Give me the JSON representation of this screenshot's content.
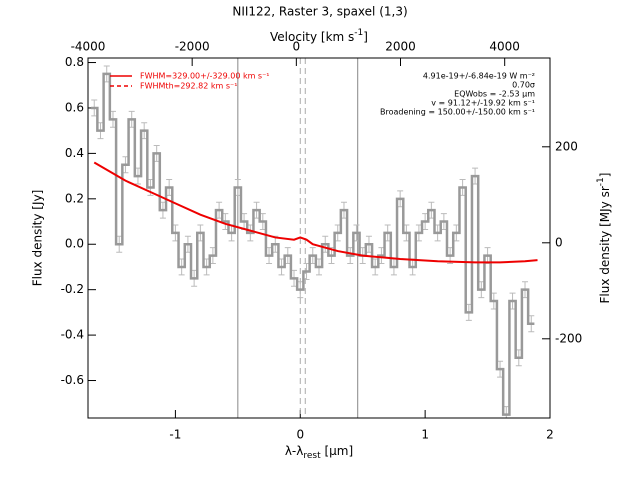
{
  "chart_data": {
    "type": "spectrum",
    "title": "NII122, Raster 3, spaxel (1,3)",
    "x_label": [
      "λ-λ",
      "rest",
      " [μm]"
    ],
    "x2_label": [
      "Velocity [km s",
      "-1",
      "]"
    ],
    "y_label": "Flux density [Jy]",
    "y2_label": [
      "Flux density [MJy sr",
      "-1",
      "]"
    ],
    "xlim": [
      -1.7,
      2.0
    ],
    "xticks": [
      -1,
      0,
      1,
      2
    ],
    "x2lim": [
      -4000,
      4870
    ],
    "x2ticks": [
      -4000,
      -2000,
      0,
      2000,
      4000
    ],
    "ylim": [
      -0.765,
      0.82
    ],
    "yticks": [
      -0.6,
      -0.4,
      -0.2,
      {
        "value": 0,
        "label": "0.0"
      },
      0.2,
      0.4,
      0.6,
      0.8
    ],
    "y2lim": [
      -365,
      385
    ],
    "y2ticks": [
      -200,
      0,
      200
    ],
    "series": [
      {
        "name": "spectrum",
        "color": "#999999",
        "error_color": "#bbbbbb",
        "x": [
          -1.65,
          -1.6,
          -1.55,
          -1.5,
          -1.45,
          -1.4,
          -1.35,
          -1.3,
          -1.25,
          -1.2,
          -1.15,
          -1.1,
          -1.05,
          -1.0,
          -0.95,
          -0.9,
          -0.85,
          -0.8,
          -0.75,
          -0.7,
          -0.65,
          -0.6,
          -0.55,
          -0.5,
          -0.45,
          -0.4,
          -0.35,
          -0.3,
          -0.25,
          -0.2,
          -0.15,
          -0.1,
          -0.05,
          0.0,
          0.05,
          0.1,
          0.15,
          0.2,
          0.25,
          0.3,
          0.35,
          0.4,
          0.45,
          0.5,
          0.55,
          0.6,
          0.65,
          0.7,
          0.75,
          0.8,
          0.85,
          0.9,
          0.95,
          1.0,
          1.05,
          1.1,
          1.15,
          1.2,
          1.25,
          1.3,
          1.35,
          1.4,
          1.45,
          1.5,
          1.55,
          1.6,
          1.65,
          1.7,
          1.75,
          1.8,
          1.85
        ],
        "values": [
          0.6,
          0.5,
          0.75,
          0.55,
          0.0,
          0.35,
          0.55,
          0.3,
          0.5,
          0.25,
          0.4,
          0.15,
          0.25,
          0.05,
          -0.1,
          0.0,
          -0.15,
          0.05,
          -0.1,
          -0.05,
          0.15,
          0.1,
          0.05,
          0.25,
          0.1,
          0.05,
          0.15,
          0.1,
          -0.05,
          0.0,
          -0.1,
          -0.05,
          -0.15,
          -0.2,
          -0.12,
          -0.05,
          -0.1,
          0.0,
          -0.05,
          0.05,
          0.15,
          -0.05,
          0.05,
          -0.05,
          0.0,
          -0.1,
          -0.05,
          0.05,
          -0.1,
          0.2,
          0.05,
          -0.1,
          0.05,
          0.1,
          0.15,
          0.05,
          0.1,
          -0.05,
          0.05,
          0.25,
          -0.3,
          0.3,
          -0.2,
          -0.05,
          -0.25,
          -0.55,
          -0.75,
          -0.25,
          -0.5,
          -0.2,
          -0.35
        ],
        "errors": [
          0.035,
          0.035,
          0.035,
          0.035,
          0.035,
          0.035,
          0.035,
          0.035,
          0.035,
          0.035,
          0.035,
          0.035,
          0.035,
          0.035,
          0.035,
          0.035,
          0.035,
          0.035,
          0.035,
          0.035,
          0.035,
          0.035,
          0.035,
          0.035,
          0.035,
          0.035,
          0.035,
          0.035,
          0.035,
          0.035,
          0.035,
          0.035,
          0.035,
          0.035,
          0.035,
          0.035,
          0.035,
          0.035,
          0.035,
          0.035,
          0.035,
          0.035,
          0.035,
          0.035,
          0.035,
          0.035,
          0.035,
          0.035,
          0.035,
          0.035,
          0.035,
          0.035,
          0.035,
          0.035,
          0.035,
          0.035,
          0.035,
          0.035,
          0.035,
          0.035,
          0.035,
          0.035,
          0.035,
          0.035,
          0.035,
          0.035,
          0.035,
          0.035,
          0.035,
          0.035,
          0.035
        ]
      },
      {
        "name": "fit",
        "color": "#ee0000",
        "x": [
          -1.65,
          -1.4,
          -1.2,
          -1.0,
          -0.8,
          -0.6,
          -0.4,
          -0.2,
          -0.05,
          0.0,
          0.05,
          0.1,
          0.3,
          0.5,
          0.8,
          1.1,
          1.4,
          1.6,
          1.8,
          1.9
        ],
        "values": [
          0.36,
          0.28,
          0.23,
          0.18,
          0.13,
          0.09,
          0.06,
          0.03,
          0.02,
          0.03,
          0.02,
          0.0,
          -0.03,
          -0.05,
          -0.065,
          -0.075,
          -0.08,
          -0.08,
          -0.075,
          -0.07
        ]
      }
    ],
    "vlines": [
      {
        "x": -0.5,
        "style": "solid",
        "color": "#888888"
      },
      {
        "x": 0.46,
        "style": "solid",
        "color": "#888888"
      },
      {
        "x": 0.0,
        "style": "dashed",
        "color": "#aaaaaa"
      },
      {
        "x": 0.04,
        "style": "dashed",
        "color": "#aaaaaa"
      }
    ],
    "legend": [
      {
        "style": "solid",
        "color": "#ee0000",
        "label": "FWHM=329.00+/-329.00 km s⁻¹"
      },
      {
        "style": "dashed",
        "color": "#ee0000",
        "label": "FWHMth=292.82 km s⁻¹"
      }
    ],
    "annotations": [
      "4.91e-19+/-6.84e-19 W m⁻²",
      "0.70σ",
      "EQWobs = -2.53 μm",
      "v = 91.12+/-19.92 km s⁻¹",
      "Broadening = 150.00+/-150.00 km s⁻¹"
    ]
  }
}
